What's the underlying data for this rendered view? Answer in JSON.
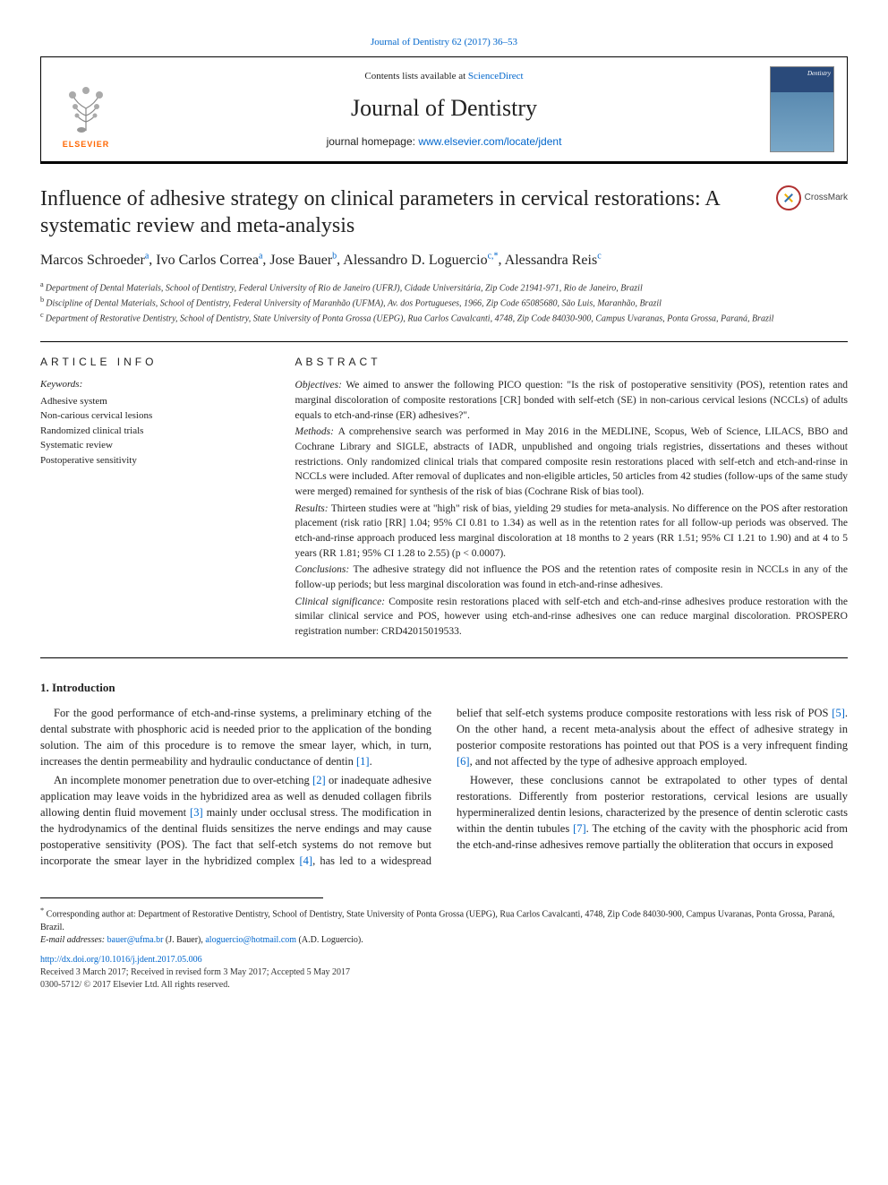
{
  "top_link": {
    "text": "Journal of Dentistry 62 (2017) 36–53",
    "href": "#"
  },
  "header": {
    "contents_prefix": "Contents lists available at ",
    "contents_link_text": "ScienceDirect",
    "journal_name": "Journal of Dentistry",
    "homepage_prefix": "journal homepage: ",
    "homepage_link_text": "www.elsevier.com/locate/jdent",
    "elsevier_label": "ELSEVIER",
    "cover_label": "Dentistry"
  },
  "crossmark_label": "CrossMark",
  "title": "Influence of adhesive strategy on clinical parameters in cervical restorations: A systematic review and meta-analysis",
  "authors_html_parts": [
    {
      "name": "Marcos Schroeder",
      "sup": "a"
    },
    {
      "name": "Ivo Carlos Correa",
      "sup": "a"
    },
    {
      "name": "Jose Bauer",
      "sup": "b"
    },
    {
      "name": "Alessandro D. Loguercio",
      "sup": "c,*"
    },
    {
      "name": "Alessandra Reis",
      "sup": "c"
    }
  ],
  "affiliations": [
    {
      "sup": "a",
      "text": "Department of Dental Materials, School of Dentistry, Federal University of Rio de Janeiro (UFRJ), Cidade Universitária, Zip Code 21941-971, Rio de Janeiro, Brazil"
    },
    {
      "sup": "b",
      "text": "Discipline of Dental Materials, School of Dentistry, Federal University of Maranhão (UFMA), Av. dos Portugueses, 1966, Zip Code 65085680, São Luis, Maranhão, Brazil"
    },
    {
      "sup": "c",
      "text": "Department of Restorative Dentistry, School of Dentistry, State University of Ponta Grossa (UEPG), Rua Carlos Cavalcanti, 4748, Zip Code 84030-900, Campus Uvaranas, Ponta Grossa, Paraná, Brazil"
    }
  ],
  "article_info": {
    "heading": "ARTICLE INFO",
    "keywords_label": "Keywords:",
    "keywords": [
      "Adhesive system",
      "Non-carious cervical lesions",
      "Randomized clinical trials",
      "Systematic review",
      "Postoperative sensitivity"
    ]
  },
  "abstract": {
    "heading": "ABSTRACT",
    "parts": [
      {
        "label": "Objectives:",
        "text": "We aimed to answer the following PICO question: \"Is the risk of postoperative sensitivity (POS), retention rates and marginal discoloration of composite restorations [CR] bonded with self-etch (SE) in non-carious cervical lesions (NCCLs) of adults equals to etch-and-rinse (ER) adhesives?\"."
      },
      {
        "label": "Methods:",
        "text": "A comprehensive search was performed in May 2016 in the MEDLINE, Scopus, Web of Science, LILACS, BBO and Cochrane Library and SIGLE, abstracts of IADR, unpublished and ongoing trials registries, dissertations and theses without restrictions. Only randomized clinical trials that compared composite resin restorations placed with self-etch and etch-and-rinse in NCCLs were included. After removal of duplicates and non-eligible articles, 50 articles from 42 studies (follow-ups of the same study were merged) remained for synthesis of the risk of bias (Cochrane Risk of bias tool)."
      },
      {
        "label": "Results:",
        "text": "Thirteen studies were at \"high\" risk of bias, yielding 29 studies for meta-analysis. No difference on the POS after restoration placement (risk ratio [RR] 1.04; 95% CI 0.81 to 1.34) as well as in the retention rates for all follow-up periods was observed. The etch-and-rinse approach produced less marginal discoloration at 18 months to 2 years (RR 1.51; 95% CI 1.21 to 1.90) and at 4 to 5 years (RR 1.81; 95% CI 1.28 to 2.55) (p < 0.0007)."
      },
      {
        "label": "Conclusions:",
        "text": "The adhesive strategy did not influence the POS and the retention rates of composite resin in NCCLs in any of the follow-up periods; but less marginal discoloration was found in etch-and-rinse adhesives."
      },
      {
        "label": "Clinical significance:",
        "text": "Composite resin restorations placed with self-etch and etch-and-rinse adhesives produce restoration with the similar clinical service and POS, however using etch-and-rinse adhesives one can reduce marginal discoloration. PROSPERO registration number: CRD42015019533."
      }
    ]
  },
  "intro": {
    "heading": "1. Introduction",
    "paragraphs": [
      {
        "segments": [
          {
            "t": "For the good performance of etch-and-rinse systems, a preliminary etching of the dental substrate with phosphoric acid is needed prior to the application of the bonding solution. The aim of this procedure is to remove the smear layer, which, in turn, increases the dentin permeability and hydraulic conductance of dentin "
          },
          {
            "t": "[1]",
            "link": true
          },
          {
            "t": "."
          }
        ]
      },
      {
        "segments": [
          {
            "t": "An incomplete monomer penetration due to over-etching "
          },
          {
            "t": "[2]",
            "link": true
          },
          {
            "t": " or inadequate adhesive application may leave voids in the hybridized area as well as denuded collagen fibrils allowing dentin fluid movement "
          },
          {
            "t": "[3]",
            "link": true
          },
          {
            "t": " mainly under occlusal stress. The modification in the hydrodynamics of the dentinal fluids sensitizes the nerve endings and may cause postoperative sensitivity (POS). The fact that self-etch systems do not remove but incorporate the smear layer in the hybridized complex "
          },
          {
            "t": "[4]",
            "link": true
          },
          {
            "t": ", has led to a widespread belief that self-etch systems produce composite restorations with less risk of POS "
          },
          {
            "t": "[5]",
            "link": true
          },
          {
            "t": ". On the other hand, a recent meta-analysis about the effect of adhesive strategy in posterior composite restorations has pointed out that POS is a very infrequent finding "
          },
          {
            "t": "[6]",
            "link": true
          },
          {
            "t": ", and not affected by the type of adhesive approach employed."
          }
        ]
      },
      {
        "segments": [
          {
            "t": "However, these conclusions cannot be extrapolated to other types of dental restorations. Differently from posterior restorations, cervical lesions are usually hypermineralized dentin lesions, characterized by the presence of dentin sclerotic casts within the dentin tubules "
          },
          {
            "t": "[7]",
            "link": true
          },
          {
            "t": ". The etching of the cavity with the phosphoric acid from the etch-and-rinse adhesives remove partially the obliteration that occurs in exposed"
          }
        ]
      }
    ]
  },
  "footnotes": {
    "corr_marker": "*",
    "corr_text": "Corresponding author at: Department of Restorative Dentistry, School of Dentistry, State University of Ponta Grossa (UEPG), Rua Carlos Cavalcanti, 4748, Zip Code 84030-900, Campus Uvaranas, Ponta Grossa, Paraná, Brazil.",
    "emails_label": "E-mail addresses:",
    "emails": [
      {
        "addr": "bauer@ufma.br",
        "who": "(J. Bauer)"
      },
      {
        "addr": "aloguercio@hotmail.com",
        "who": "(A.D. Loguercio)."
      }
    ]
  },
  "doi": {
    "url_text": "http://dx.doi.org/10.1016/j.jdent.2017.05.006"
  },
  "history": "Received 3 March 2017; Received in revised form 3 May 2017; Accepted 5 May 2017",
  "copyright": "0300-5712/ © 2017 Elsevier Ltd. All rights reserved.",
  "colors": {
    "link": "#0066cc",
    "elsevier_orange": "#ff6600"
  }
}
